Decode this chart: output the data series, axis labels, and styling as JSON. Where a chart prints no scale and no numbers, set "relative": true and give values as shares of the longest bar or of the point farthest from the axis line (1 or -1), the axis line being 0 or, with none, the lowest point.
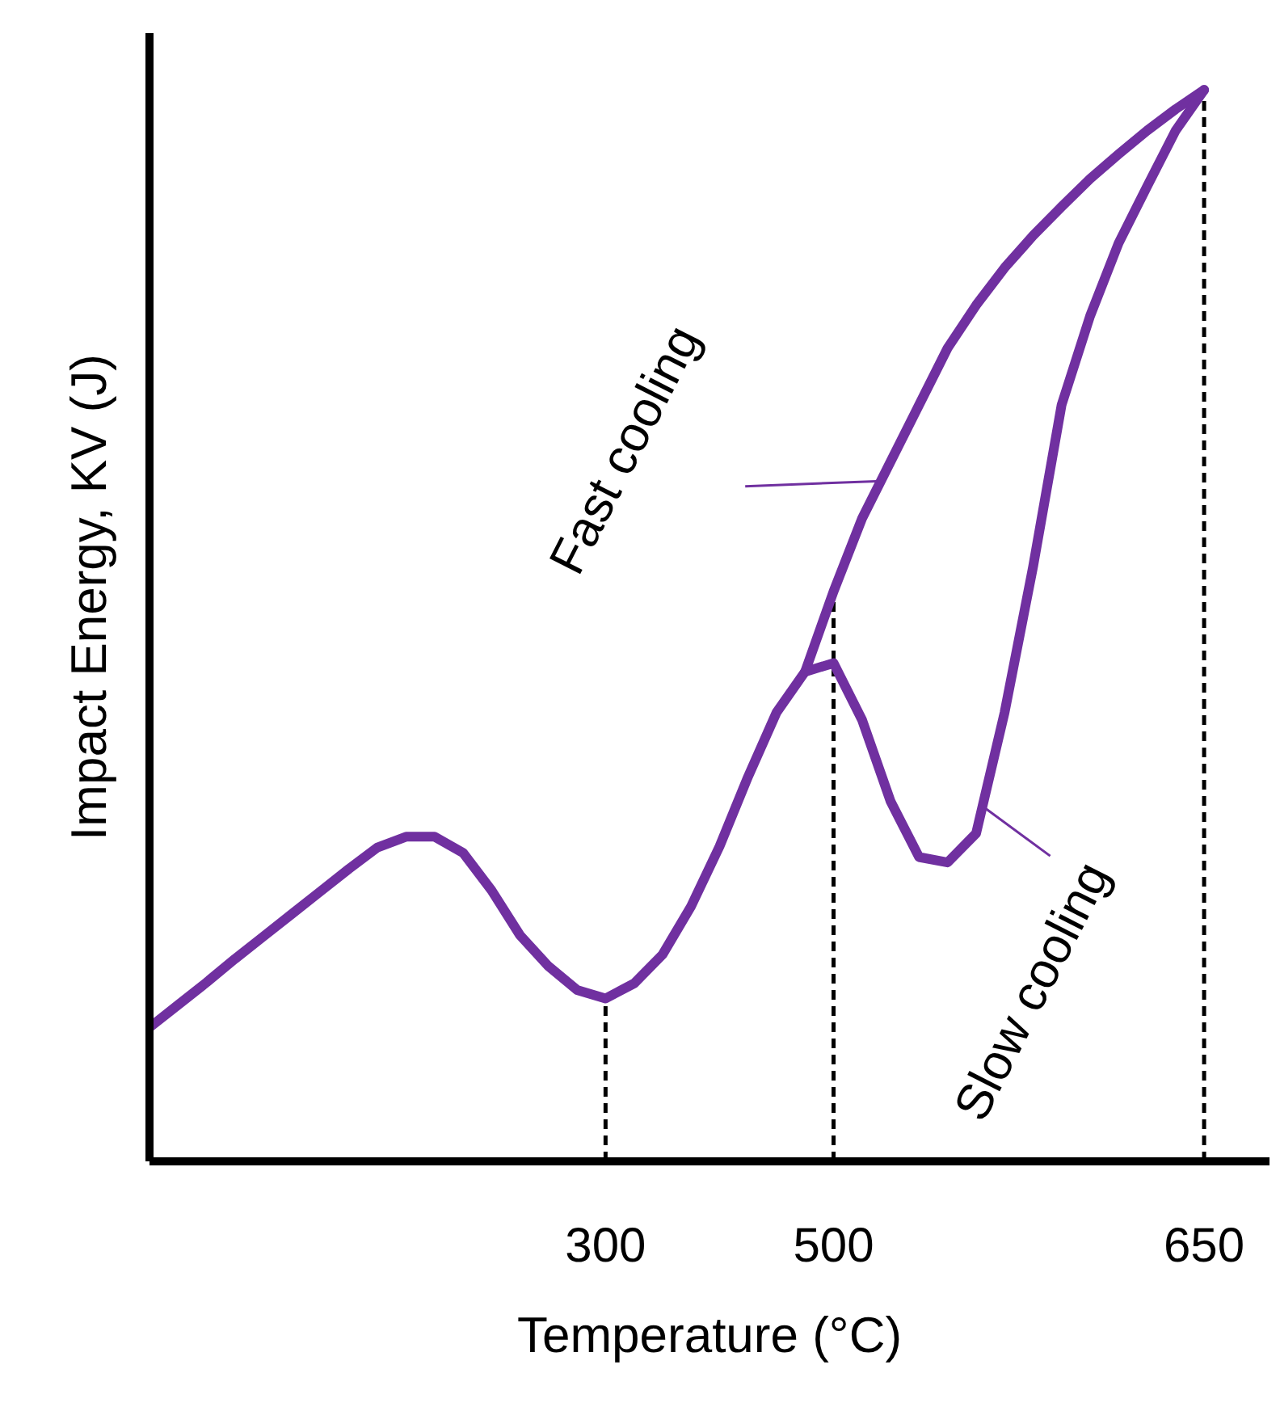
{
  "chart_data": {
    "type": "line",
    "relative": true,
    "xlabel": "Temperature (°C)",
    "ylabel": "Impact Energy, KV (J)",
    "categories": [
      null,
      null,
      null,
      null,
      null,
      null,
      null,
      null,
      null,
      null,
      null,
      null,
      null,
      null,
      null,
      null,
      "300",
      null,
      null,
      null,
      null,
      null,
      null,
      null,
      "500",
      null,
      null,
      null,
      null,
      null,
      null,
      null,
      null,
      null,
      null,
      null,
      null,
      "650"
    ],
    "series": [
      {
        "color": "#7030a0",
        "values": [
          0.125,
          0.146,
          0.167,
          0.189,
          0.21,
          0.231,
          0.252,
          0.273,
          0.293,
          0.303,
          0.303,
          0.288,
          0.253,
          0.211,
          0.182,
          0.16,
          0.152,
          0.166,
          0.193,
          0.238,
          0.294,
          0.359,
          0.419,
          0.457,
          0.532,
          0.6,
          0.653,
          0.706,
          0.759,
          0.799,
          0.834,
          0.864,
          0.891,
          0.917,
          0.94,
          0.962,
          0.982,
          1
        ]
      },
      {
        "color": "#7030a0",
        "values": [
          null,
          null,
          null,
          null,
          null,
          null,
          null,
          null,
          null,
          null,
          null,
          null,
          null,
          null,
          null,
          null,
          null,
          null,
          null,
          null,
          null,
          null,
          null,
          0.457,
          0.465,
          0.412,
          0.336,
          0.284,
          0.279,
          0.306,
          0.419,
          0.555,
          0.706,
          0.789,
          0.857,
          0.91,
          0.962,
          1
        ]
      }
    ],
    "ref_lines": [
      {
        "axis": "x",
        "value": "300",
        "color": "#000000",
        "line_style": "dashed"
      },
      {
        "axis": "x",
        "value": "500",
        "color": "#000000",
        "line_style": "dashed"
      },
      {
        "axis": "x",
        "value": "650",
        "color": "#000000",
        "line_style": "dashed"
      }
    ],
    "annotations": [
      "Fast cooling",
      "Slow cooling"
    ],
    "grid": false,
    "marker": "none",
    "line_style": "solid"
  }
}
